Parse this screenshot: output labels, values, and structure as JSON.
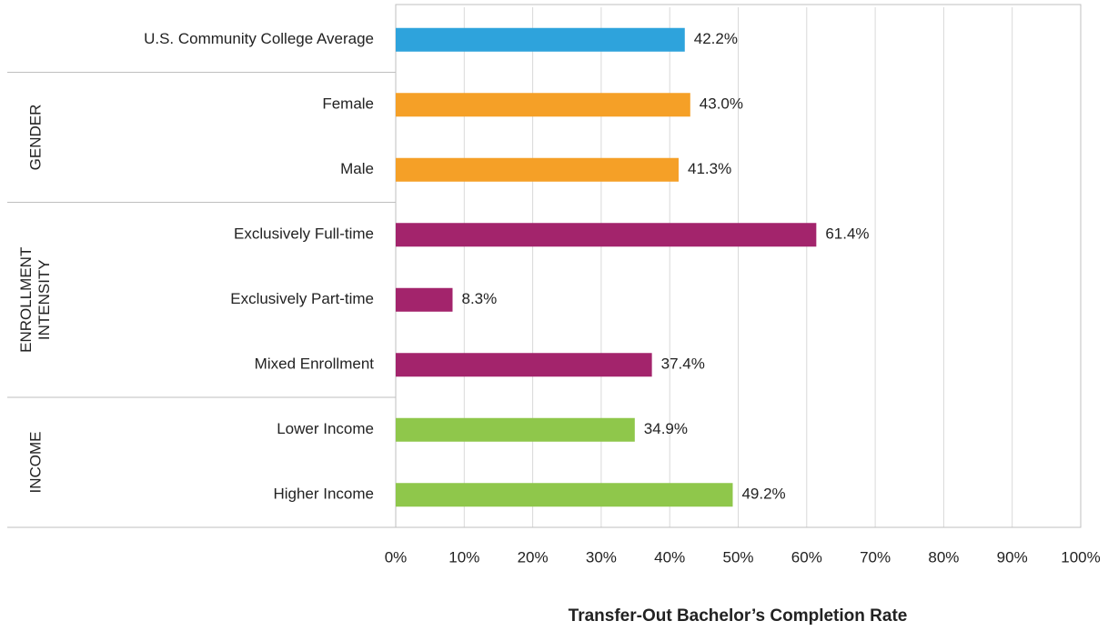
{
  "chart_data": {
    "type": "bar",
    "orientation": "horizontal",
    "xlabel": "Transfer-Out Bachelor’s Completion Rate",
    "xlim": [
      0,
      100
    ],
    "xticks": [
      {
        "value": 0,
        "label": "0%"
      },
      {
        "value": 10,
        "label": "10%"
      },
      {
        "value": 20,
        "label": "20%"
      },
      {
        "value": 30,
        "label": "30%"
      },
      {
        "value": 40,
        "label": "40%"
      },
      {
        "value": 50,
        "label": "50%"
      },
      {
        "value": 60,
        "label": "60%"
      },
      {
        "value": 70,
        "label": "70%"
      },
      {
        "value": 80,
        "label": "80%"
      },
      {
        "value": 90,
        "label": "90%"
      },
      {
        "value": 100,
        "label": "100%"
      }
    ],
    "grid": true,
    "series": [
      {
        "color": "#2ea3dc",
        "categories": [
          "U.S. Community College Average"
        ],
        "values": [
          42.2
        ],
        "value_labels": [
          "42.2%"
        ]
      },
      {
        "name": "GENDER",
        "color": "#f5a027",
        "categories": [
          "Female",
          "Male"
        ],
        "values": [
          43.0,
          41.3
        ],
        "value_labels": [
          "43.0%",
          "41.3%"
        ]
      },
      {
        "name": "ENROLLMENT INTENSITY",
        "color": "#a3246c",
        "categories": [
          "Exclusively Full-time",
          "Exclusively Part-time",
          "Mixed Enrollment"
        ],
        "values": [
          61.4,
          8.3,
          37.4
        ],
        "value_labels": [
          "61.4%",
          "8.3%",
          "37.4%"
        ]
      },
      {
        "name": "INCOME",
        "color": "#8fc74b",
        "categories": [
          "Lower Income",
          "Higher Income"
        ],
        "values": [
          34.9,
          49.2
        ],
        "value_labels": [
          "34.9%",
          "49.2%"
        ]
      }
    ]
  }
}
